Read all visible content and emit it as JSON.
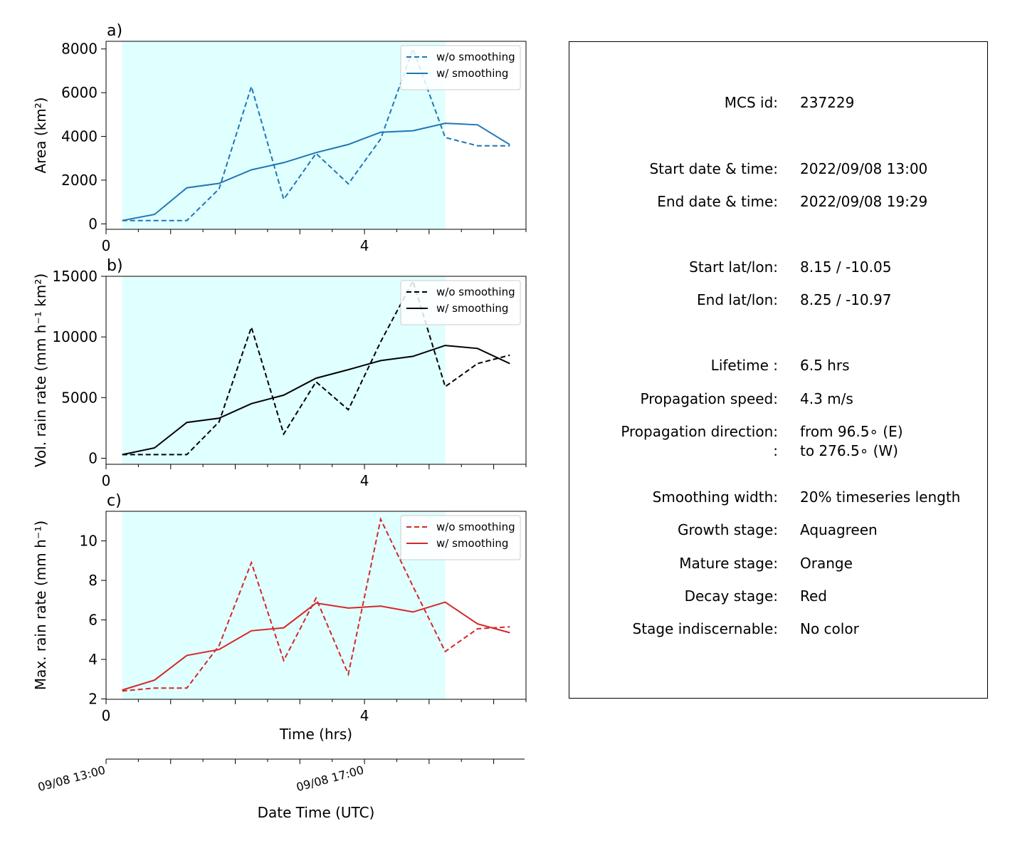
{
  "chart_data": [
    {
      "type": "line",
      "panel_label": "a)",
      "ylabel": "Area  (km²)",
      "xlim": [
        0,
        6.5
      ],
      "ylim": [
        -250,
        8350
      ],
      "yticks": [
        "0",
        "2000",
        "4000",
        "6000",
        "8000"
      ],
      "xticks": [
        "0",
        "4"
      ],
      "color": "#1f77b4",
      "shaded_x": [
        0.25,
        5.25
      ],
      "shade_color": "#e0ffff",
      "x": [
        0.25,
        0.75,
        1.25,
        1.75,
        2.25,
        2.75,
        3.25,
        3.75,
        4.25,
        4.75,
        5.25,
        5.75,
        6.25
      ],
      "series": [
        {
          "name": "w/o smoothing",
          "style": "dashed",
          "values": [
            150,
            150,
            150,
            1600,
            6280,
            1120,
            3220,
            1830,
            3880,
            8000,
            3950,
            3570,
            3570
          ]
        },
        {
          "name": "w/ smoothing",
          "style": "solid",
          "values": [
            150,
            430,
            1650,
            1850,
            2470,
            2800,
            3260,
            3630,
            4190,
            4260,
            4600,
            4530,
            3620
          ]
        }
      ]
    },
    {
      "type": "line",
      "panel_label": "b)",
      "ylabel": "Vol. rain rate (mm h⁻¹ km²)",
      "xlim": [
        0,
        6.5
      ],
      "ylim": [
        -500,
        15000
      ],
      "yticks": [
        "0",
        "5000",
        "10000",
        "15000"
      ],
      "xticks": [
        "0",
        "4"
      ],
      "color": "#000000",
      "shaded_x": [
        0.25,
        5.25
      ],
      "shade_color": "#e0ffff",
      "x": [
        0.25,
        0.75,
        1.25,
        1.75,
        2.25,
        2.75,
        3.25,
        3.75,
        4.25,
        4.75,
        5.25,
        5.75,
        6.25
      ],
      "series": [
        {
          "name": "w/o smoothing",
          "style": "dashed",
          "values": [
            300,
            300,
            300,
            3000,
            10800,
            2000,
            6300,
            4000,
            9600,
            14600,
            5900,
            7800,
            8500
          ]
        },
        {
          "name": "w/ smoothing",
          "style": "solid",
          "values": [
            300,
            850,
            2950,
            3300,
            4500,
            5200,
            6600,
            7300,
            8050,
            8400,
            9300,
            9050,
            7800
          ]
        }
      ]
    },
    {
      "type": "line",
      "panel_label": "c)",
      "ylabel": "Max. rain rate  (mm h⁻¹)",
      "xlabel": "Time (hrs)",
      "xlim": [
        0,
        6.5
      ],
      "ylim": [
        1.98,
        11.5
      ],
      "yticks": [
        "2",
        "4",
        "6",
        "8",
        "10"
      ],
      "xticks": [
        "0",
        "4"
      ],
      "color": "#d62728",
      "shaded_x": [
        0.25,
        5.25
      ],
      "shade_color": "#e0ffff",
      "x": [
        0.25,
        0.75,
        1.25,
        1.75,
        2.25,
        2.75,
        3.25,
        3.75,
        4.25,
        4.75,
        5.25,
        5.75,
        6.25
      ],
      "series": [
        {
          "name": "w/o smoothing",
          "style": "dashed",
          "values": [
            2.4,
            2.55,
            2.55,
            4.7,
            8.9,
            3.95,
            7.1,
            3.25,
            11.1,
            7.7,
            4.4,
            5.55,
            5.65
          ]
        },
        {
          "name": "w/ smoothing",
          "style": "solid",
          "values": [
            2.45,
            2.95,
            4.2,
            4.5,
            5.45,
            5.6,
            6.85,
            6.6,
            6.7,
            6.4,
            6.9,
            5.8,
            5.35
          ]
        }
      ]
    }
  ],
  "date_axis": {
    "label": "Date Time (UTC)",
    "ticks": [
      {
        "x": 0,
        "label": "09/08 13:00"
      },
      {
        "x": 4,
        "label": "09/08 17:00"
      }
    ]
  },
  "info": {
    "rows": [
      {
        "key": "MCS id:",
        "value": "237229"
      },
      {
        "key": "Start date & time:",
        "value": "2022/09/08 13:00"
      },
      {
        "key": "End date & time:",
        "value": "2022/09/08 19:29"
      },
      {
        "key": "Start lat/lon:",
        "value": "8.15 / -10.05"
      },
      {
        "key": "End lat/lon:",
        "value": "8.25 / -10.97"
      },
      {
        "key": "Lifetime :",
        "value": "6.5 hrs"
      },
      {
        "key": "Propagation speed:",
        "value": "4.3 m/s"
      },
      {
        "key": "Propagation direction:",
        "value": "from  96.5∘ (E)"
      },
      {
        "key": ":",
        "value": "to   276.5∘ (W)"
      },
      {
        "key": "Smoothing width:",
        "value": "20% timeseries length"
      },
      {
        "key": "Growth stage:",
        "value": "Aquagreen"
      },
      {
        "key": "Mature stage:",
        "value": "Orange"
      },
      {
        "key": "Decay stage:",
        "value": "Red"
      },
      {
        "key": "Stage indiscernable:",
        "value": "No color"
      }
    ]
  }
}
